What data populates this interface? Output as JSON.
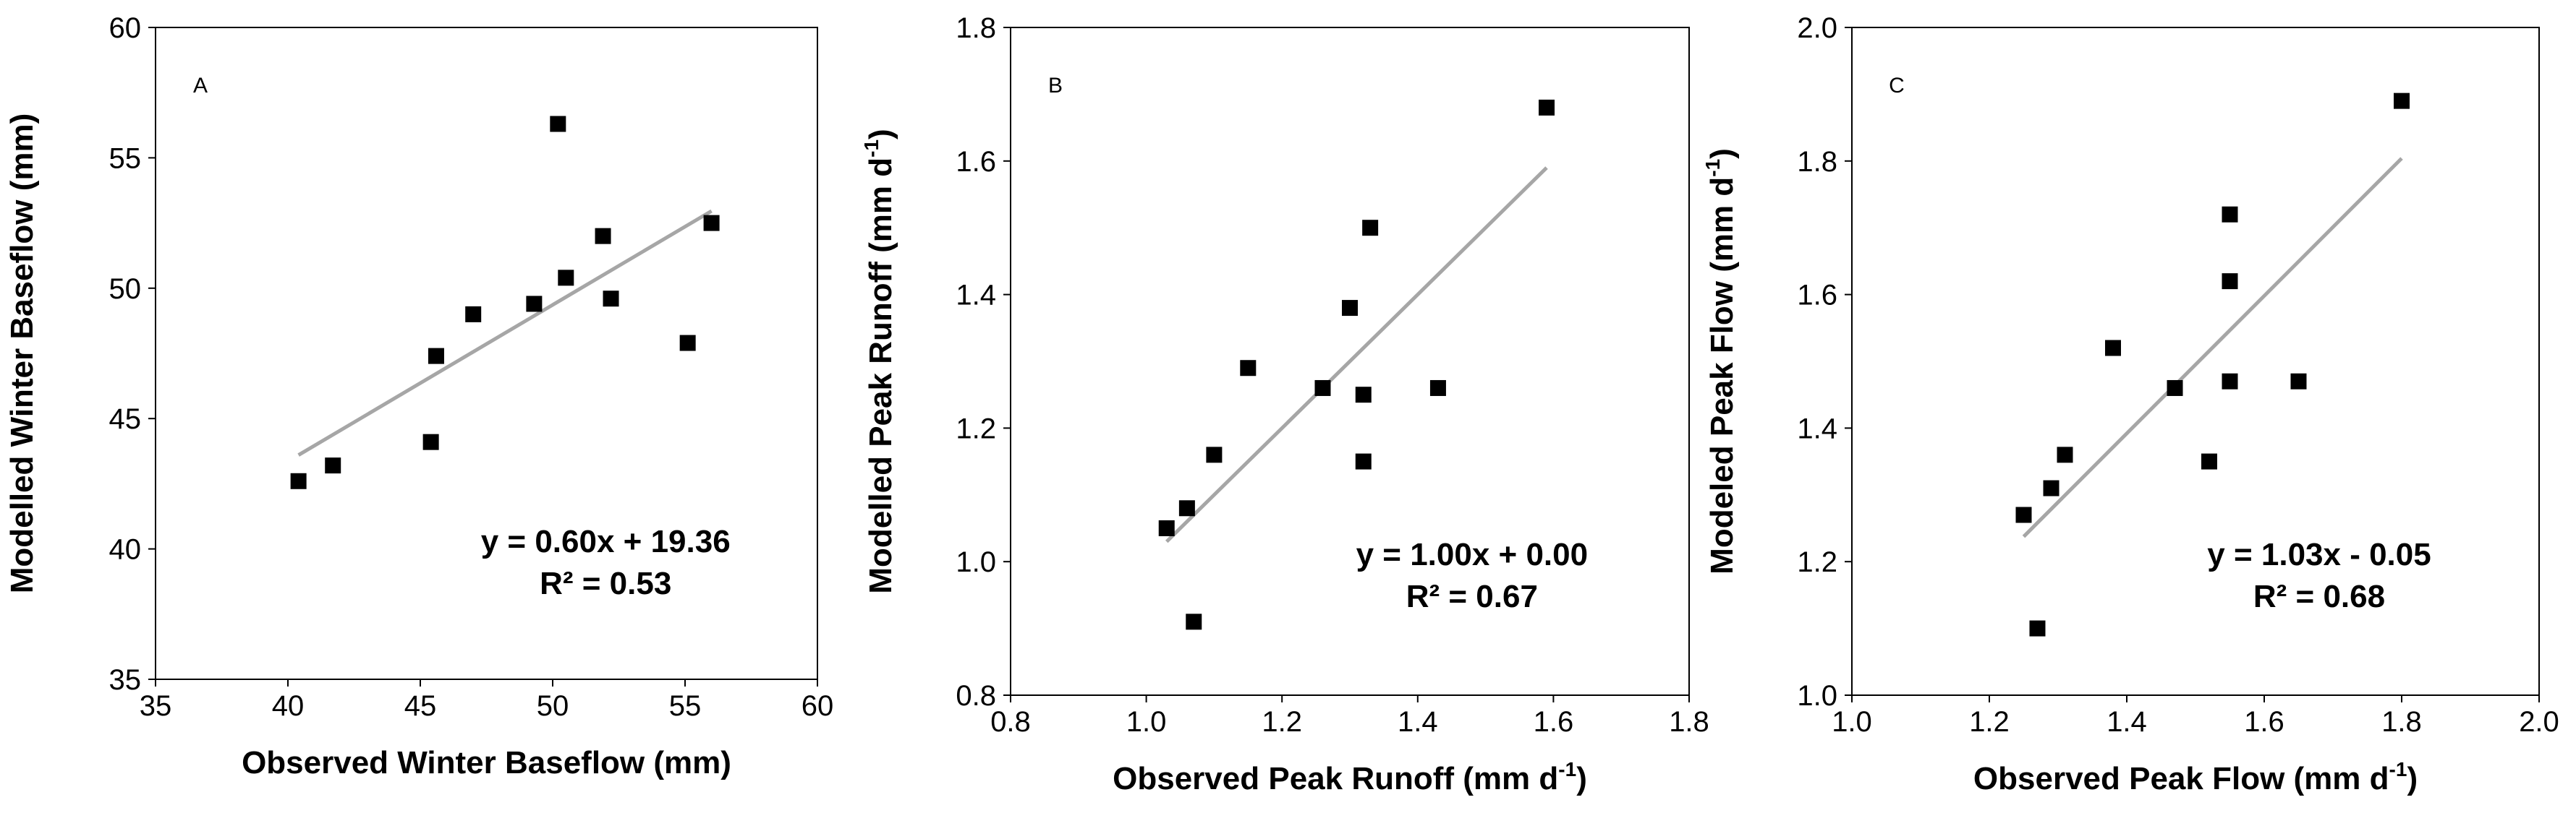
{
  "chart_data": [
    {
      "type": "scatter",
      "panel_label": "A",
      "xlabel": "Observed Winter Baseflow  (mm)",
      "ylabel": "Modelled Winter Baseflow (mm)",
      "ylabel_sup": "",
      "xlabel_sup": "",
      "ylabel_tail": "",
      "xlabel_tail": "",
      "xlim": [
        35,
        60
      ],
      "ylim": [
        35,
        60
      ],
      "xticks": [
        35,
        40,
        45,
        50,
        55,
        60
      ],
      "yticks": [
        35,
        40,
        45,
        50,
        55,
        60
      ],
      "tick_decimals": 0,
      "grid": false,
      "x": [
        40.4,
        41.7,
        45.4,
        45.6,
        47.0,
        49.3,
        50.2,
        50.5,
        51.9,
        52.2,
        55.1,
        56.0
      ],
      "y": [
        42.6,
        43.2,
        44.1,
        47.4,
        49.0,
        49.4,
        56.3,
        50.4,
        52.0,
        49.6,
        47.9,
        52.5
      ],
      "trendline": {
        "slope": 0.6,
        "intercept": 19.36,
        "x_range": [
          40.4,
          56.0
        ]
      },
      "equation": "y = 0.60x + 19.36",
      "r_squared": "R² = 0.53",
      "marker_color": "#000000",
      "trend_color": "#a6a6a6"
    },
    {
      "type": "scatter",
      "panel_label": "B",
      "xlabel": "Observed Peak Runoff (mm d",
      "ylabel": "Modelled Peak Runoff (mm d",
      "xlabel_sup": "-1",
      "ylabel_sup": "-1",
      "xlabel_tail": ")",
      "ylabel_tail": ")",
      "xlim": [
        0.8,
        1.8
      ],
      "ylim": [
        0.8,
        1.8
      ],
      "xticks": [
        0.8,
        1.0,
        1.2,
        1.4,
        1.6,
        1.8
      ],
      "yticks": [
        0.8,
        1.0,
        1.2,
        1.4,
        1.6,
        1.8
      ],
      "tick_decimals": 1,
      "grid": false,
      "x": [
        1.03,
        1.06,
        1.07,
        1.1,
        1.15,
        1.26,
        1.3,
        1.32,
        1.32,
        1.33,
        1.43,
        1.59
      ],
      "y": [
        1.05,
        1.08,
        0.91,
        1.16,
        1.29,
        1.26,
        1.38,
        1.25,
        1.15,
        1.5,
        1.26,
        1.68
      ],
      "trendline": {
        "slope": 1.0,
        "intercept": 0.0,
        "x_range": [
          1.03,
          1.59
        ]
      },
      "equation": "y = 1.00x + 0.00",
      "r_squared": "R² = 0.67",
      "marker_color": "#000000",
      "trend_color": "#a6a6a6"
    },
    {
      "type": "scatter",
      "panel_label": "C",
      "xlabel": "Observed Peak Flow (mm d",
      "ylabel": "Modeled Peak Flow (mm d",
      "xlabel_sup": "-1",
      "ylabel_sup": "-1",
      "xlabel_tail": ")",
      "ylabel_tail": ")",
      "xlim": [
        1.0,
        2.0
      ],
      "ylim": [
        1.0,
        2.0
      ],
      "xticks": [
        1.0,
        1.2,
        1.4,
        1.6,
        1.8,
        2.0
      ],
      "yticks": [
        1.0,
        1.2,
        1.4,
        1.6,
        1.8,
        2.0
      ],
      "tick_decimals": 1,
      "grid": false,
      "x": [
        1.25,
        1.27,
        1.29,
        1.31,
        1.38,
        1.47,
        1.52,
        1.55,
        1.55,
        1.55,
        1.65,
        1.8
      ],
      "y": [
        1.27,
        1.1,
        1.31,
        1.36,
        1.52,
        1.46,
        1.35,
        1.72,
        1.62,
        1.47,
        1.47,
        1.89
      ],
      "trendline": {
        "slope": 1.03,
        "intercept": -0.05,
        "x_range": [
          1.25,
          1.8
        ]
      },
      "equation": "y = 1.03x - 0.05",
      "r_squared": "R² = 0.68",
      "marker_color": "#000000",
      "trend_color": "#a6a6a6"
    }
  ]
}
